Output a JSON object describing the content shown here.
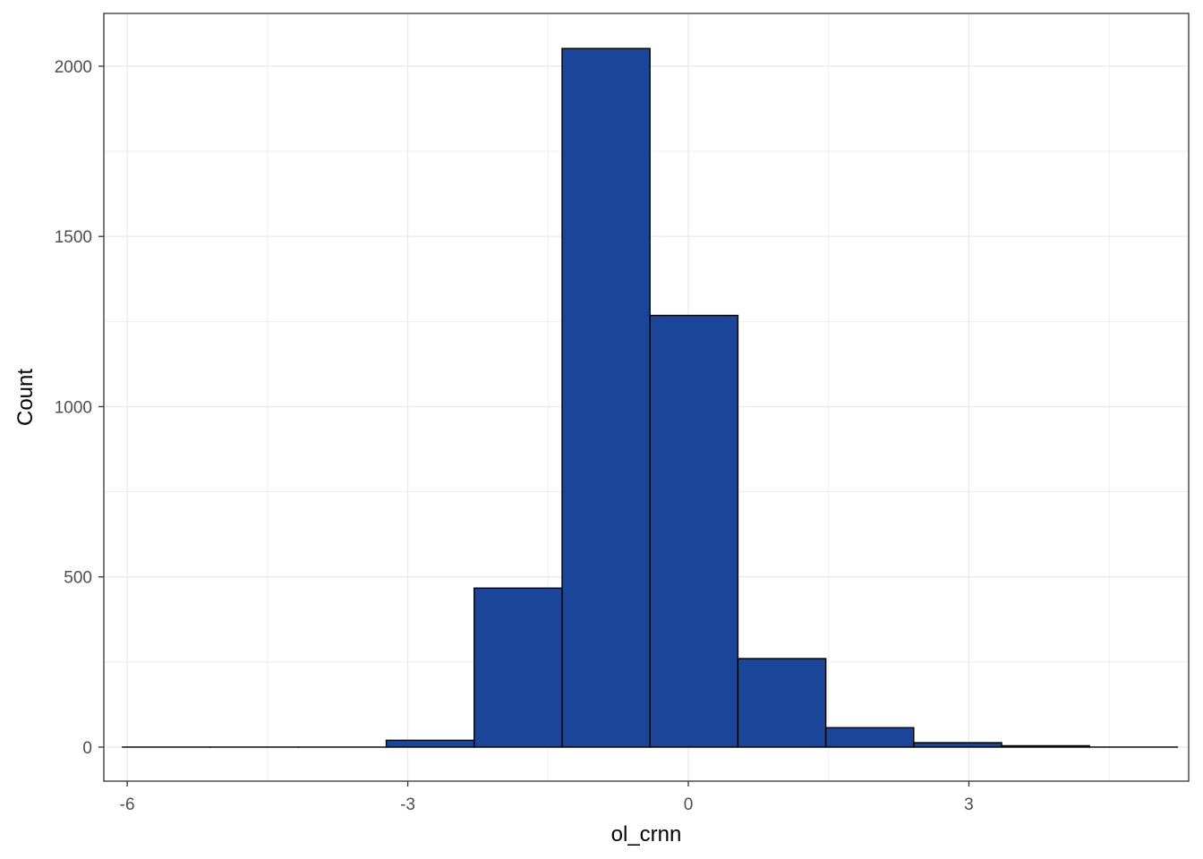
{
  "chart_data": {
    "type": "bar",
    "subtype": "histogram",
    "xlabel": "ol_crnn",
    "ylabel": "Count",
    "xlim": [
      -6.25,
      5.35
    ],
    "ylim": [
      -100,
      2155
    ],
    "xticks": [
      -6,
      -3,
      0,
      3
    ],
    "yticks": [
      0,
      500,
      1000,
      1500,
      2000
    ],
    "bin_width": 0.94,
    "bins": [
      {
        "x0": -6.05,
        "x1": -5.11,
        "count": 0
      },
      {
        "x0": -5.11,
        "x1": -4.17,
        "count": 0
      },
      {
        "x0": -4.17,
        "x1": -3.23,
        "count": 0
      },
      {
        "x0": -3.23,
        "x1": -2.29,
        "count": 20
      },
      {
        "x0": -2.29,
        "x1": -1.35,
        "count": 467
      },
      {
        "x0": -1.35,
        "x1": -0.41,
        "count": 2052
      },
      {
        "x0": -0.41,
        "x1": 0.53,
        "count": 1268
      },
      {
        "x0": 0.53,
        "x1": 1.47,
        "count": 260
      },
      {
        "x0": 1.47,
        "x1": 2.41,
        "count": 57
      },
      {
        "x0": 2.41,
        "x1": 3.35,
        "count": 13
      },
      {
        "x0": 3.35,
        "x1": 4.29,
        "count": 4
      },
      {
        "x0": 4.29,
        "x1": 5.23,
        "count": 0
      }
    ],
    "fill_color": "#1a4599",
    "outline_color": "#000000",
    "grid": true,
    "grid_color": "#ebebeb",
    "panel_border_color": "#333333",
    "legend": "none"
  }
}
